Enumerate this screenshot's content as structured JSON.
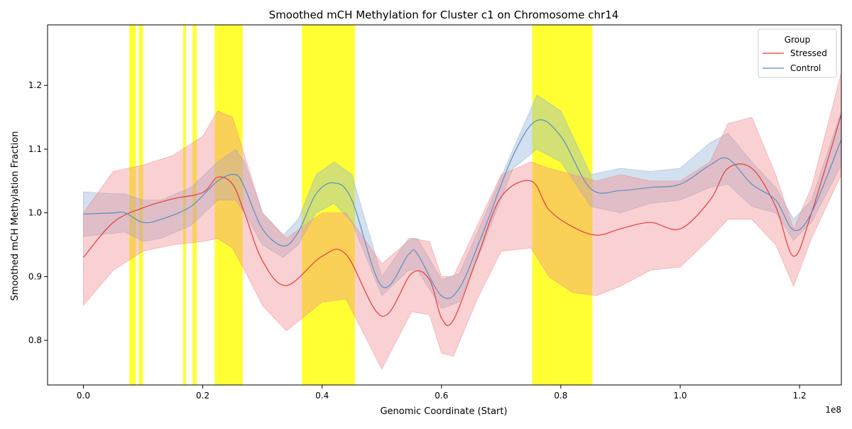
{
  "chart_data": {
    "type": "line",
    "title": "Smoothed mCH Methylation for Cluster c1 on Chromosome chr14",
    "xlabel": "Genomic Coordinate (Start)",
    "ylabel": "Smoothed mCH Methylation Fraction",
    "x_offset_label": "1e8",
    "xlim": [
      -0.06,
      1.27
    ],
    "ylim": [
      0.73,
      1.295
    ],
    "x_ticks": [
      0.0,
      0.2,
      0.4,
      0.6,
      0.8,
      1.0,
      1.2
    ],
    "x_tick_labels": [
      "0.0",
      "0.2",
      "0.4",
      "0.6",
      "0.8",
      "1.0",
      "1.2"
    ],
    "y_ticks": [
      0.8,
      0.9,
      1.0,
      1.1,
      1.2
    ],
    "y_tick_labels": [
      "0.8",
      "0.9",
      "1.0",
      "1.1",
      "1.2"
    ],
    "grid": false,
    "legend": {
      "title": "Group",
      "position": "top-right"
    },
    "highlight_color": "#ffff00",
    "highlight_regions": [
      [
        0.077,
        0.088
      ],
      [
        0.093,
        0.1
      ],
      [
        0.167,
        0.172
      ],
      [
        0.183,
        0.19
      ],
      [
        0.22,
        0.267
      ],
      [
        0.366,
        0.455
      ],
      [
        0.752,
        0.853
      ]
    ],
    "series": [
      {
        "name": "Stressed",
        "color": "#e8393c",
        "band_color": "#f28b8e",
        "x": [
          0.0,
          0.05,
          0.1,
          0.15,
          0.2,
          0.225,
          0.25,
          0.27,
          0.3,
          0.34,
          0.4,
          0.44,
          0.5,
          0.55,
          0.58,
          0.6,
          0.62,
          0.66,
          0.7,
          0.75,
          0.78,
          0.82,
          0.86,
          0.9,
          0.95,
          1.0,
          1.05,
          1.08,
          1.12,
          1.16,
          1.19,
          1.22,
          1.27
        ],
        "y": [
          0.93,
          0.985,
          1.008,
          1.022,
          1.032,
          1.056,
          1.045,
          1.0,
          0.925,
          0.886,
          0.932,
          0.935,
          0.838,
          0.905,
          0.895,
          0.835,
          0.832,
          0.93,
          1.025,
          1.05,
          1.005,
          0.978,
          0.965,
          0.975,
          0.985,
          0.975,
          1.02,
          1.07,
          1.07,
          1.01,
          0.932,
          1.0,
          1.155
        ],
        "upper": [
          1.0,
          1.065,
          1.075,
          1.09,
          1.12,
          1.16,
          1.15,
          1.09,
          1.0,
          0.96,
          1.0,
          1.0,
          0.92,
          0.96,
          0.955,
          0.9,
          0.9,
          0.98,
          1.06,
          1.08,
          1.07,
          1.06,
          1.05,
          1.06,
          1.05,
          1.05,
          1.08,
          1.14,
          1.15,
          1.06,
          0.975,
          1.04,
          1.22
        ],
        "lower": [
          0.855,
          0.91,
          0.94,
          0.95,
          0.955,
          0.96,
          0.945,
          0.91,
          0.855,
          0.815,
          0.86,
          0.865,
          0.755,
          0.845,
          0.84,
          0.78,
          0.775,
          0.865,
          0.94,
          0.945,
          0.9,
          0.875,
          0.87,
          0.885,
          0.91,
          0.915,
          0.96,
          0.99,
          0.99,
          0.95,
          0.885,
          0.96,
          1.06
        ]
      },
      {
        "name": "Control",
        "color": "#5b8ec2",
        "band_color": "#8fb2d6",
        "x": [
          0.0,
          0.05,
          0.07,
          0.1,
          0.13,
          0.18,
          0.225,
          0.255,
          0.27,
          0.3,
          0.335,
          0.36,
          0.39,
          0.42,
          0.45,
          0.5,
          0.545,
          0.56,
          0.6,
          0.63,
          0.67,
          0.72,
          0.76,
          0.8,
          0.85,
          0.9,
          0.95,
          1.0,
          1.05,
          1.08,
          1.12,
          1.16,
          1.19,
          1.22,
          1.27
        ],
        "y": [
          0.998,
          1.0,
          1.0,
          0.985,
          0.99,
          1.01,
          1.05,
          1.06,
          1.04,
          0.975,
          0.948,
          0.97,
          1.03,
          1.047,
          1.02,
          0.885,
          0.935,
          0.935,
          0.87,
          0.882,
          0.97,
          1.09,
          1.145,
          1.12,
          1.038,
          1.035,
          1.04,
          1.045,
          1.075,
          1.085,
          1.045,
          1.02,
          0.973,
          1.0,
          1.115
        ],
        "upper": [
          1.033,
          1.03,
          1.03,
          1.02,
          1.02,
          1.04,
          1.08,
          1.1,
          1.08,
          1.0,
          0.965,
          0.99,
          1.06,
          1.08,
          1.06,
          0.9,
          0.96,
          0.96,
          0.895,
          0.905,
          0.99,
          1.1,
          1.185,
          1.16,
          1.06,
          1.07,
          1.065,
          1.07,
          1.11,
          1.125,
          1.08,
          1.04,
          0.99,
          1.02,
          1.16
        ],
        "lower": [
          0.963,
          0.968,
          0.97,
          0.955,
          0.96,
          0.98,
          1.02,
          1.02,
          1.0,
          0.95,
          0.93,
          0.95,
          1.0,
          1.015,
          0.985,
          0.87,
          0.91,
          0.91,
          0.85,
          0.86,
          0.95,
          1.07,
          1.1,
          1.08,
          1.01,
          1.0,
          1.015,
          1.02,
          1.04,
          1.045,
          1.01,
          1.0,
          0.957,
          0.985,
          1.075
        ]
      }
    ]
  }
}
